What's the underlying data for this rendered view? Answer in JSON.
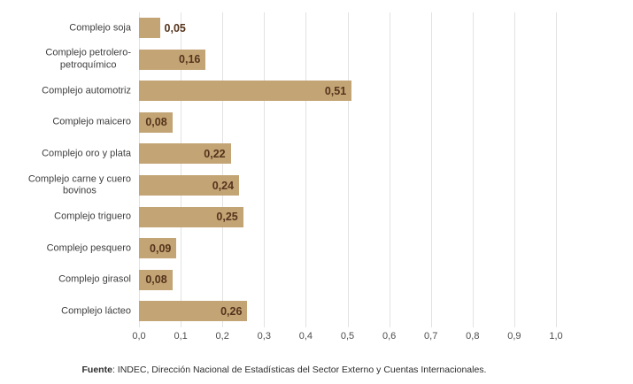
{
  "chart_data": {
    "type": "bar",
    "orientation": "horizontal",
    "title": "",
    "xlabel": "",
    "ylabel": "",
    "grid": true,
    "xlim": [
      0.0,
      1.0
    ],
    "x_tick_values": [
      0.0,
      0.1,
      0.2,
      0.3,
      0.4,
      0.5,
      0.6,
      0.7,
      0.8,
      0.9,
      1.0
    ],
    "x_tick_labels": [
      "0,0",
      "0,1",
      "0,2",
      "0,3",
      "0,4",
      "0,5",
      "0,6",
      "0,7",
      "0,8",
      "0,9",
      "1,0"
    ],
    "categories": [
      [
        "Complejo soja"
      ],
      [
        "Complejo petrolero-",
        "petroquímico"
      ],
      [
        "Complejo automotriz"
      ],
      [
        "Complejo maicero"
      ],
      [
        "Complejo oro y plata"
      ],
      [
        "Complejo carne y cuero",
        "bovinos"
      ],
      [
        "Complejo triguero"
      ],
      [
        "Complejo pesquero"
      ],
      [
        "Complejo girasol"
      ],
      [
        "Complejo lácteo"
      ]
    ],
    "values": [
      0.05,
      0.16,
      0.51,
      0.08,
      0.22,
      0.24,
      0.25,
      0.09,
      0.08,
      0.26
    ],
    "value_labels": [
      "0,05",
      "0,16",
      "0,51",
      "0,08",
      "0,22",
      "0,24",
      "0,25",
      "0,09",
      "0,08",
      "0,26"
    ],
    "bar_color": "#c3a475",
    "value_label_color": "#54341c",
    "gridline_color": "#e2e2e2"
  },
  "footer": {
    "source_label": "Fuente",
    "source_text": ": INDEC, Dirección Nacional de Estadísticas del Sector Externo y Cuentas Internacionales."
  }
}
